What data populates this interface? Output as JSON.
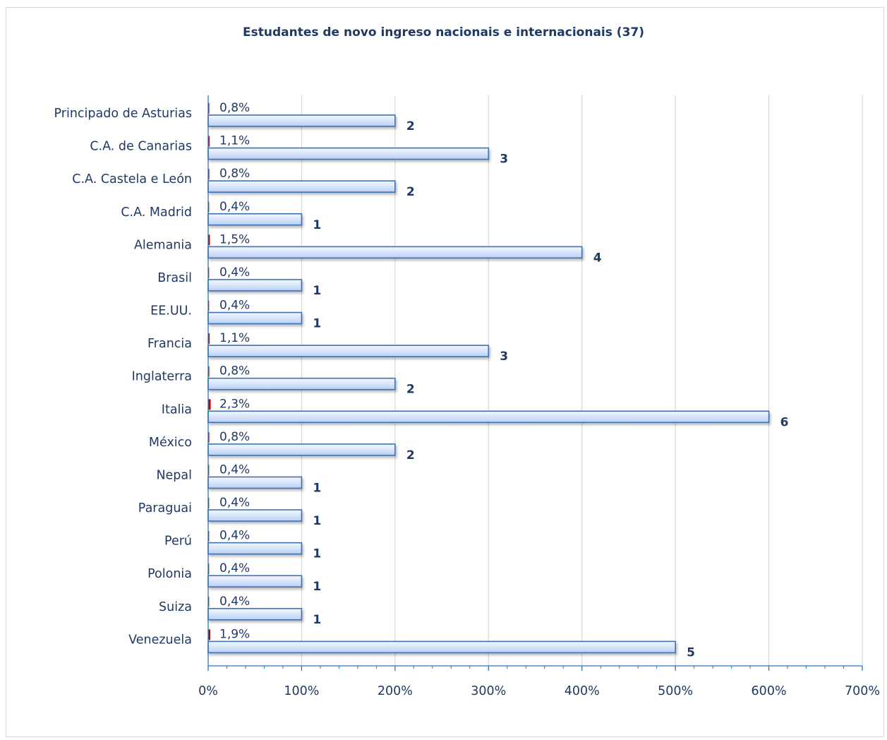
{
  "chart_data": {
    "type": "bar",
    "orientation": "horizontal",
    "title": "Estudantes de novo ingreso nacionais e internacionais (37)",
    "categories": [
      "Principado de Asturias",
      "C.A. de Canarias",
      "C.A. Castela e León",
      "C.A. Madrid",
      "Alemania",
      "Brasil",
      "EE.UU.",
      "Francia",
      "Inglaterra",
      "Italia",
      "México",
      "Nepal",
      "Paraguai",
      "Perú",
      "Polonia",
      "Suiza",
      "Venezuela"
    ],
    "series": [
      {
        "color": "#c00000",
        "values": [
          0.8,
          1.1,
          0.8,
          0.4,
          1.5,
          0.4,
          0.4,
          1.1,
          0.8,
          2.3,
          0.8,
          0.4,
          0.4,
          0.4,
          0.4,
          0.4,
          1.9
        ],
        "labels": [
          "0,8%",
          "1,1%",
          "0,8%",
          "0,4%",
          "1,5%",
          "0,4%",
          "0,4%",
          "1,1%",
          "0,8%",
          "2,3%",
          "0,8%",
          "0,4%",
          "0,4%",
          "0,4%",
          "0,4%",
          "0,4%",
          "1,9%"
        ]
      },
      {
        "color": "#c9dcf7",
        "values": [
          2,
          3,
          2,
          1,
          4,
          1,
          1,
          3,
          2,
          6,
          2,
          1,
          1,
          1,
          1,
          1,
          5
        ],
        "labels": [
          "2",
          "3",
          "2",
          "1",
          "4",
          "1",
          "1",
          "3",
          "2",
          "6",
          "2",
          "1",
          "1",
          "1",
          "1",
          "1",
          "5"
        ]
      }
    ],
    "xlim": [
      0,
      700
    ],
    "xticks": [
      "0%",
      "100%",
      "200%",
      "300%",
      "400%",
      "500%",
      "600%",
      "700%"
    ],
    "grid": true
  }
}
